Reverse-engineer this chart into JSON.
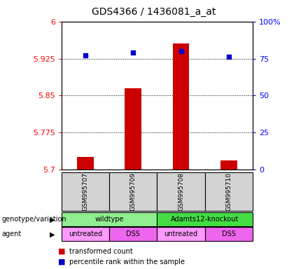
{
  "title": "GDS4366 / 1436081_a_at",
  "samples": [
    "GSM995707",
    "GSM995709",
    "GSM995708",
    "GSM995710"
  ],
  "bar_values": [
    5.725,
    5.865,
    5.955,
    5.718
  ],
  "percentile_values": [
    77,
    79,
    80,
    76
  ],
  "ylim_left": [
    5.7,
    6.0
  ],
  "ylim_right": [
    0,
    100
  ],
  "yticks_left": [
    5.7,
    5.775,
    5.85,
    5.925,
    6.0
  ],
  "ytick_labels_left": [
    "5.7",
    "5.775",
    "5.85",
    "5.925",
    "6"
  ],
  "yticks_right": [
    0,
    25,
    50,
    75,
    100
  ],
  "ytick_labels_right": [
    "0",
    "25",
    "50",
    "75",
    "100%"
  ],
  "bar_color": "#cc0000",
  "dot_color": "#0000cc",
  "bar_width": 0.35,
  "genotype_labels": [
    {
      "label": "wildtype",
      "spans": [
        0,
        1
      ],
      "color": "#90ee90"
    },
    {
      "label": "Adamts12-knockout",
      "spans": [
        2,
        3
      ],
      "color": "#44dd44"
    }
  ],
  "agent_labels": [
    {
      "label": "untreated",
      "col": 0,
      "color": "#ff99ff"
    },
    {
      "label": "DSS",
      "col": 1,
      "color": "#ee66ee"
    },
    {
      "label": "untreated",
      "col": 2,
      "color": "#ff99ff"
    },
    {
      "label": "DSS",
      "col": 3,
      "color": "#ee66ee"
    }
  ],
  "legend_entries": [
    {
      "label": "transformed count",
      "color": "#cc0000"
    },
    {
      "label": "percentile rank within the sample",
      "color": "#0000cc"
    }
  ],
  "row_label_genotype": "genotype/variation",
  "row_label_agent": "agent",
  "sample_box_color": "#d3d3d3"
}
